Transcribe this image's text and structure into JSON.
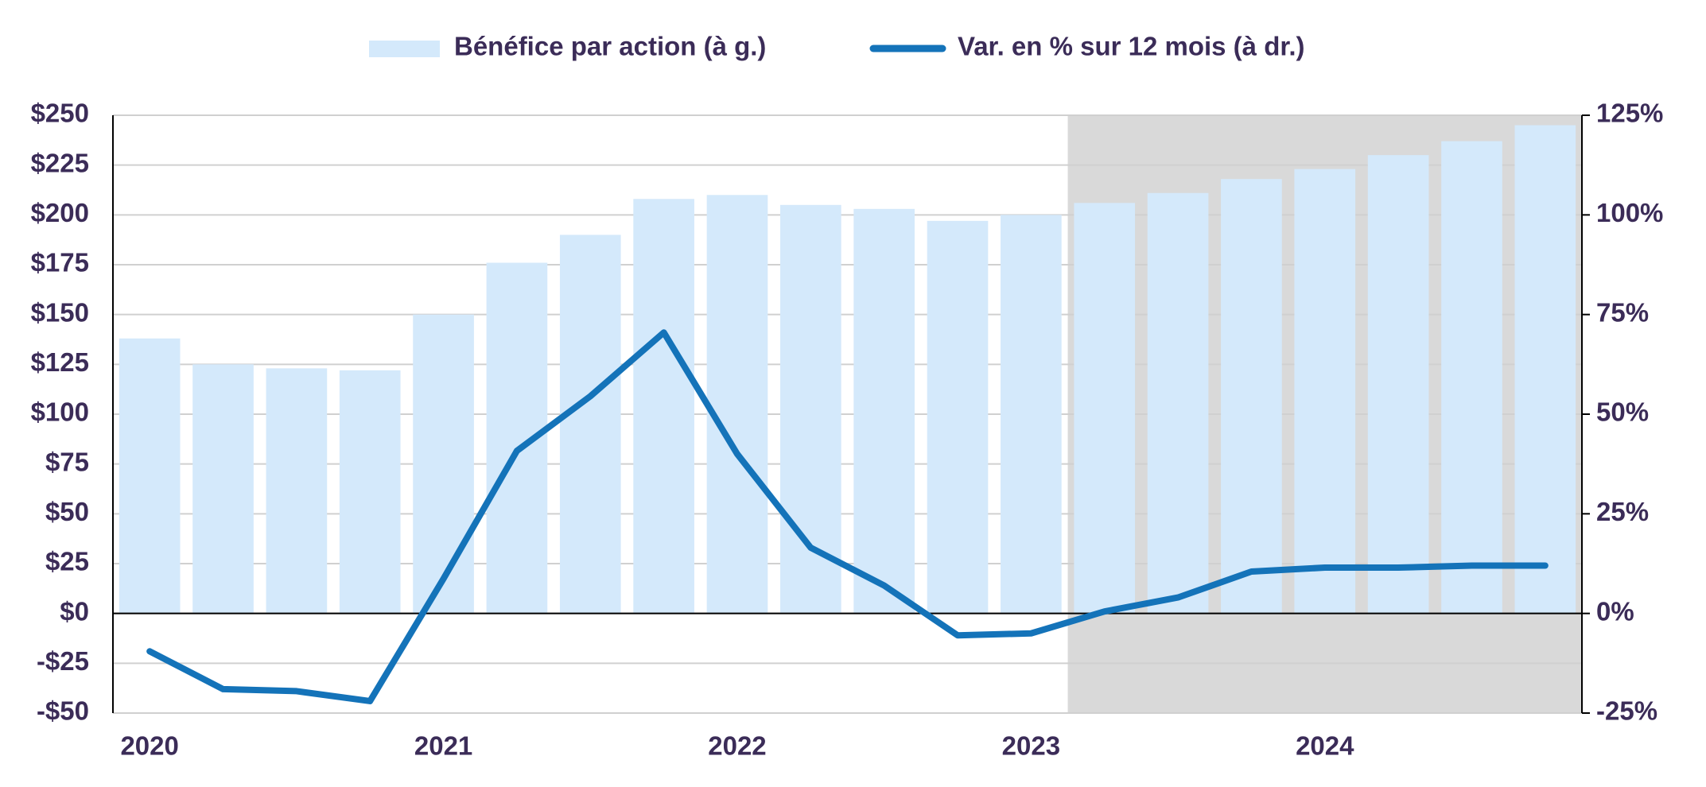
{
  "chart_data": {
    "type": "bar_line",
    "categories": [
      "2020",
      null,
      null,
      null,
      "2021",
      null,
      null,
      null,
      "2022",
      null,
      null,
      null,
      "2023",
      null,
      null,
      null,
      "2024",
      null,
      null,
      null
    ],
    "series": [
      {
        "name": "Bénéfice par action (à g.)",
        "type": "bar",
        "color": "#d4e9fb",
        "values": [
          138,
          125,
          123,
          122,
          150,
          176,
          190,
          208,
          210,
          205,
          203,
          197,
          200,
          206,
          211,
          218,
          223,
          230,
          237,
          245
        ]
      },
      {
        "name": "Var. en % sur 12 mois (à dr.)",
        "type": "line",
        "axis": "y2",
        "color": "#1473b9",
        "values": [
          -9.5,
          -19,
          -19.5,
          -22,
          8.7,
          40.8,
          54.5,
          70.5,
          40,
          16.5,
          7,
          -5.5,
          -5,
          0.5,
          4,
          10.5,
          11.5,
          11.5,
          12,
          12
        ]
      }
    ],
    "ylim": [
      -50,
      250
    ],
    "yticks": [
      {
        "value": -50,
        "label": "-$50"
      },
      {
        "value": -25,
        "label": "-$25"
      },
      {
        "value": 0,
        "label": "$0"
      },
      {
        "value": 25,
        "label": "$25"
      },
      {
        "value": 50,
        "label": "$50"
      },
      {
        "value": 75,
        "label": "$75"
      },
      {
        "value": 100,
        "label": "$100"
      },
      {
        "value": 125,
        "label": "$125"
      },
      {
        "value": 150,
        "label": "$150"
      },
      {
        "value": 175,
        "label": "$175"
      },
      {
        "value": 200,
        "label": "$200"
      },
      {
        "value": 225,
        "label": "$225"
      },
      {
        "value": 250,
        "label": "$250"
      }
    ],
    "y2lim": [
      -25,
      125
    ],
    "y2ticks": [
      {
        "value": -25,
        "label": "-25%"
      },
      {
        "value": 0,
        "label": "0%"
      },
      {
        "value": 25,
        "label": "25%"
      },
      {
        "value": 50,
        "label": "50%"
      },
      {
        "value": 75,
        "label": "75%"
      },
      {
        "value": 100,
        "label": "100%"
      },
      {
        "value": 125,
        "label": "125%"
      }
    ],
    "grid": true,
    "legend": "top"
  }
}
